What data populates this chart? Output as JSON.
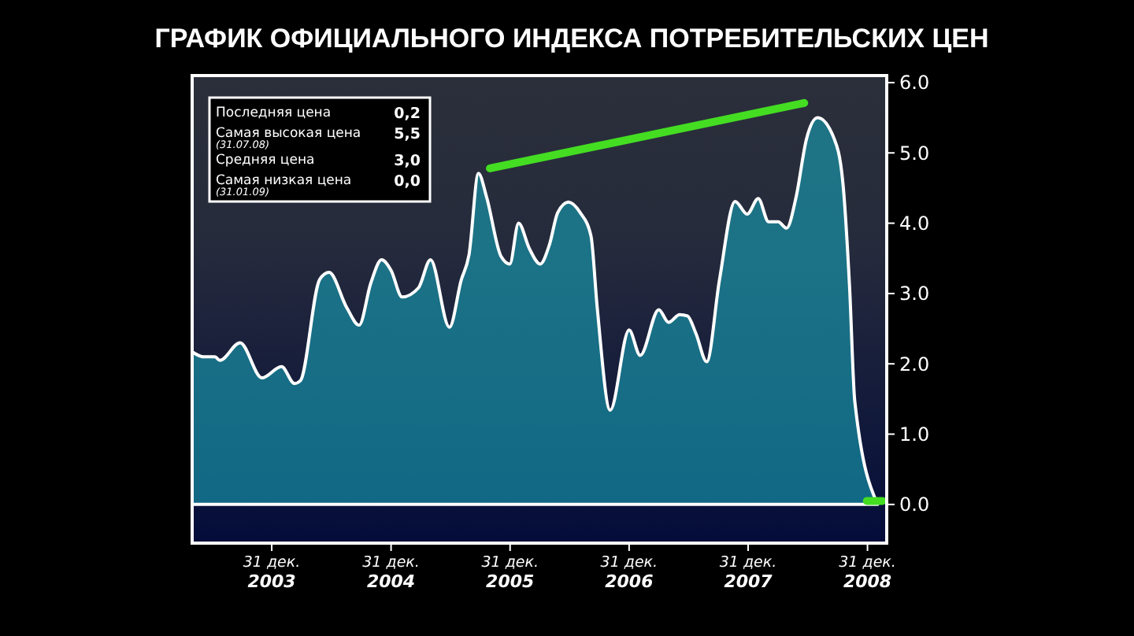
{
  "chart_data": {
    "type": "area",
    "title": "ГРАФИК ОФИЦИАЛЬНОГО ИНДЕКСА ПОТРЕБИТЕЛЬСКИХ ЦЕН",
    "xlim": [
      "2003-05-01",
      "2009-02-28"
    ],
    "xticks": [
      {
        "value": "2003-12-31",
        "label": "31 дек.\n2003"
      },
      {
        "value": "2004-12-31",
        "label": "31 дек.\n2004"
      },
      {
        "value": "2005-12-31",
        "label": "31 дек.\n2005"
      },
      {
        "value": "2006-12-31",
        "label": "31 дек.\n2006"
      },
      {
        "value": "2007-12-31",
        "label": "31 дек.\n2007"
      },
      {
        "value": "2008-12-31",
        "label": "31 дек.\n2008"
      }
    ],
    "ylim": [
      -0.55,
      6.1
    ],
    "yticks": [
      {
        "value": 0,
        "label": "0.0"
      },
      {
        "value": 1,
        "label": "1.0"
      },
      {
        "value": 2,
        "label": "2.0"
      },
      {
        "value": 3,
        "label": "3.0"
      },
      {
        "value": 4,
        "label": "4.0"
      },
      {
        "value": 5,
        "label": "5.0"
      },
      {
        "value": 6,
        "label": "6.0"
      }
    ],
    "grid": false,
    "annotations": [
      "Последняя цена",
      "0,2",
      "Самая высокая цена$_{(31.07.08)}$",
      "5,5",
      "Средняя цена",
      "3,0",
      "Самая низкая цена$_{(31.01.09)}$",
      "0,0"
    ],
    "series": [
      {
        "color": "#17a3b8",
        "x": [
          "2003-05-01",
          "2003-06-05",
          "2003-07-10",
          "2003-07-25",
          "2003-09-25",
          "2003-12-01",
          "2004-01-30",
          "2004-03-10",
          "2004-03-28",
          "2004-05-26",
          "2004-06-24",
          "2004-08-17",
          "2004-09-24",
          "2004-10-30",
          "2004-12-02",
          "2004-12-31",
          "2005-02-03",
          "2005-03-25",
          "2005-05-01",
          "2005-06-28",
          "2005-08-03",
          "2005-08-27",
          "2005-09-25",
          "2005-10-20",
          "2005-12-03",
          "2005-12-30",
          "2006-01-26",
          "2006-02-28",
          "2006-04-02",
          "2006-05-01",
          "2006-05-26",
          "2006-06-28",
          "2006-08-03",
          "2006-09-05",
          "2006-09-24",
          "2006-11-03",
          "2006-12-31",
          "2007-02-03",
          "2007-04-01",
          "2007-05-01",
          "2007-06-04",
          "2007-06-28",
          "2007-07-24",
          "2007-08-26",
          "2007-10-04",
          "2007-11-21",
          "2007-12-28",
          "2008-01-31",
          "2008-03-03",
          "2008-04-01",
          "2008-04-27",
          "2008-05-26",
          "2008-06-27",
          "2008-07-31",
          "2008-09-20",
          "2008-10-16",
          "2008-11-06",
          "2008-11-22",
          "2009-01-31"
        ],
        "values": [
          2.17,
          2.1,
          2.1,
          2.05,
          2.3,
          1.8,
          1.96,
          1.72,
          1.76,
          3.2,
          3.3,
          2.8,
          2.55,
          3.15,
          3.48,
          3.33,
          2.95,
          3.08,
          3.48,
          2.52,
          3.19,
          3.55,
          4.71,
          4.37,
          3.53,
          3.42,
          4.0,
          3.64,
          3.42,
          3.7,
          4.15,
          4.3,
          4.15,
          3.82,
          2.81,
          1.34,
          2.48,
          2.12,
          2.77,
          2.59,
          2.7,
          2.68,
          2.43,
          2.03,
          3.19,
          4.31,
          4.13,
          4.35,
          4.02,
          4.02,
          3.93,
          4.37,
          5.2,
          5.5,
          5.2,
          4.6,
          3.1,
          1.47,
          0.0
        ]
      },
      {
        "type": "line",
        "color": "#44dd22",
        "x": [
          "2005-10-30",
          "2008-06-20"
        ],
        "values": [
          4.78,
          5.71
        ]
      },
      {
        "type": "line",
        "color": "#44dd22",
        "x": [
          "2008-12-29",
          "2009-02-15"
        ],
        "values": [
          0.05,
          0.05
        ]
      }
    ]
  }
}
